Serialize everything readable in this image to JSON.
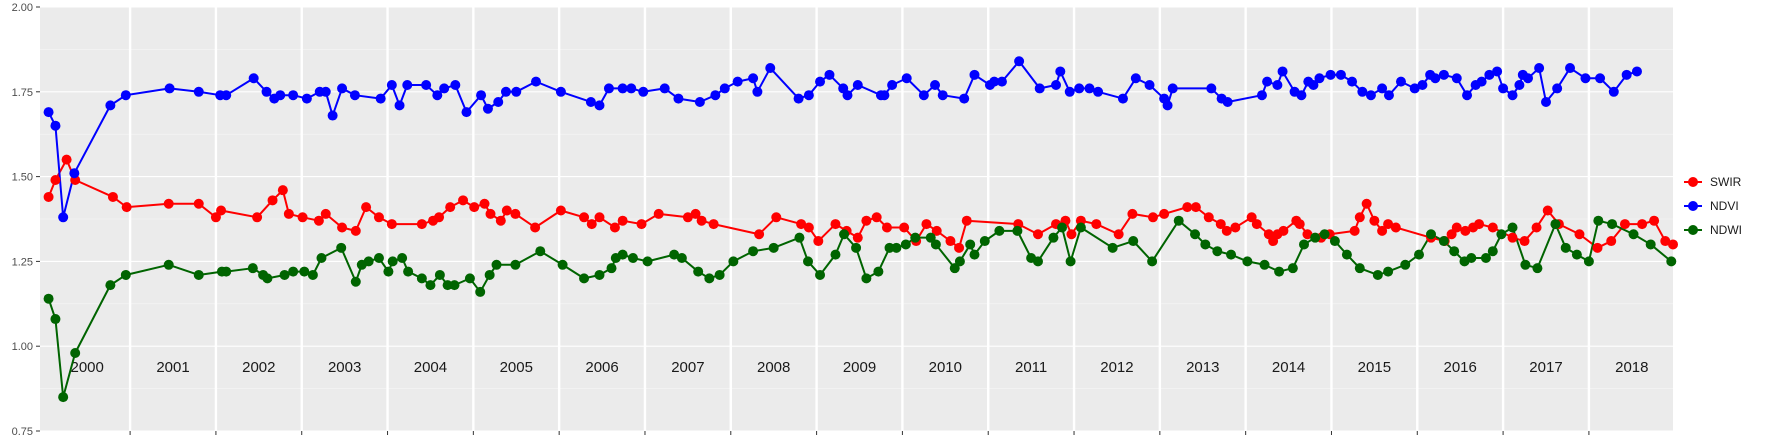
{
  "chart_data": {
    "type": "line",
    "title": "",
    "xlabel": "",
    "ylabel": "",
    "xlim": [
      1999.95,
      2018.98
    ],
    "ylim": [
      0.75,
      2.0
    ],
    "yticks": [
      "0.75",
      "1.00",
      "1.25",
      "1.50",
      "1.75",
      "2.00"
    ],
    "years": [
      "2000",
      "2001",
      "2002",
      "2003",
      "2004",
      "2005",
      "2006",
      "2007",
      "2008",
      "2009",
      "2010",
      "2011",
      "2012",
      "2013",
      "2014",
      "2015",
      "2016",
      "2017",
      "2018"
    ],
    "grid": true,
    "legend_position": "right",
    "series": [
      {
        "name": "SWIR",
        "color": "#ff0000",
        "x": [
          2000.05,
          2000.13,
          2000.26,
          2000.36,
          2000.8,
          2000.96,
          2001.45,
          2001.8,
          2002.0,
          2002.06,
          2002.48,
          2002.66,
          2002.78,
          2002.85,
          2003.01,
          2003.2,
          2003.28,
          2003.47,
          2003.63,
          2003.75,
          2003.9,
          2004.05,
          2004.4,
          2004.53,
          2004.6,
          2004.73,
          2004.88,
          2005.01,
          2005.13,
          2005.2,
          2005.32,
          2005.39,
          2005.49,
          2005.72,
          2006.02,
          2006.29,
          2006.38,
          2006.47,
          2006.65,
          2006.74,
          2006.96,
          2007.16,
          2007.5,
          2007.59,
          2007.66,
          2007.8,
          2008.33,
          2008.53,
          2008.82,
          2008.91,
          2009.02,
          2009.22,
          2009.35,
          2009.48,
          2009.58,
          2009.7,
          2009.82,
          2010.02,
          2010.16,
          2010.28,
          2010.4,
          2010.56,
          2010.66,
          2010.75,
          2011.35,
          2011.58,
          2011.79,
          2011.9,
          2011.97,
          2012.08,
          2012.26,
          2012.52,
          2012.68,
          2012.92,
          2013.05,
          2013.32,
          2013.42,
          2013.57,
          2013.71,
          2013.78,
          2013.88,
          2014.07,
          2014.13,
          2014.27,
          2014.32,
          2014.37,
          2014.44,
          2014.59,
          2014.63,
          2014.72,
          2014.88,
          2014.98,
          2015.27,
          2015.33,
          2015.41,
          2015.5,
          2015.59,
          2015.66,
          2015.75,
          2016.16,
          2016.32,
          2016.4,
          2016.46,
          2016.56,
          2016.65,
          2016.72,
          2016.88,
          2017.11,
          2017.25,
          2017.39,
          2017.52,
          2017.65,
          2017.89,
          2018.1,
          2018.26,
          2018.42,
          2018.62,
          2018.76,
          2018.89,
          2018.98
        ],
        "y": [
          1.44,
          1.49,
          1.55,
          1.49,
          1.44,
          1.41,
          1.42,
          1.42,
          1.38,
          1.4,
          1.38,
          1.43,
          1.46,
          1.39,
          1.38,
          1.37,
          1.39,
          1.35,
          1.34,
          1.41,
          1.38,
          1.36,
          1.36,
          1.37,
          1.38,
          1.41,
          1.43,
          1.41,
          1.42,
          1.39,
          1.37,
          1.4,
          1.39,
          1.35,
          1.4,
          1.38,
          1.36,
          1.38,
          1.35,
          1.37,
          1.36,
          1.39,
          1.38,
          1.39,
          1.37,
          1.36,
          1.33,
          1.38,
          1.36,
          1.35,
          1.31,
          1.36,
          1.34,
          1.32,
          1.37,
          1.38,
          1.35,
          1.35,
          1.31,
          1.36,
          1.34,
          1.31,
          1.29,
          1.37,
          1.36,
          1.33,
          1.36,
          1.37,
          1.33,
          1.37,
          1.36,
          1.33,
          1.39,
          1.38,
          1.39,
          1.41,
          1.41,
          1.38,
          1.36,
          1.34,
          1.35,
          1.38,
          1.36,
          1.33,
          1.31,
          1.33,
          1.34,
          1.37,
          1.36,
          1.33,
          1.32,
          1.33,
          1.34,
          1.38,
          1.42,
          1.37,
          1.34,
          1.36,
          1.35,
          1.32,
          1.31,
          1.33,
          1.35,
          1.34,
          1.35,
          1.36,
          1.35,
          1.32,
          1.31,
          1.35,
          1.4,
          1.36,
          1.33,
          1.29,
          1.31,
          1.36,
          1.36,
          1.37,
          1.31,
          1.3
        ],
        "note_on_y": null
      },
      {
        "name": "NDVI",
        "color": "#0000ff",
        "x": [
          2000.05,
          2000.13,
          2000.22,
          2000.35,
          2000.77,
          2000.95,
          2001.46,
          2001.8,
          2002.05,
          2002.12,
          2002.44,
          2002.59,
          2002.68,
          2002.75,
          2002.9,
          2003.06,
          2003.21,
          2003.28,
          2003.36,
          2003.47,
          2003.62,
          2003.92,
          2004.05,
          2004.14,
          2004.23,
          2004.45,
          2004.58,
          2004.66,
          2004.79,
          2004.92,
          2005.09,
          2005.17,
          2005.29,
          2005.38,
          2005.5,
          2005.73,
          2006.02,
          2006.37,
          2006.47,
          2006.58,
          2006.74,
          2006.84,
          2006.98,
          2007.23,
          2007.39,
          2007.64,
          2007.82,
          2007.93,
          2008.08,
          2008.26,
          2008.31,
          2008.46,
          2008.79,
          2008.91,
          2009.04,
          2009.15,
          2009.31,
          2009.36,
          2009.48,
          2009.75,
          2009.79,
          2009.88,
          2010.05,
          2010.25,
          2010.38,
          2010.47,
          2010.72,
          2010.84,
          2011.02,
          2011.07,
          2011.16,
          2011.36,
          2011.6,
          2011.79,
          2011.84,
          2011.95,
          2012.06,
          2012.18,
          2012.28,
          2012.57,
          2012.72,
          2012.88,
          2013.05,
          2013.09,
          2013.15,
          2013.6,
          2013.72,
          2013.79,
          2014.19,
          2014.25,
          2014.37,
          2014.43,
          2014.57,
          2014.65,
          2014.73,
          2014.79,
          2014.86,
          2014.99,
          2015.11,
          2015.24,
          2015.36,
          2015.46,
          2015.59,
          2015.67,
          2015.81,
          2015.97,
          2016.06,
          2016.15,
          2016.21,
          2016.31,
          2016.46,
          2016.58,
          2016.68,
          2016.75,
          2016.84,
          2016.93,
          2017.0,
          2017.11,
          2017.19,
          2017.23,
          2017.29,
          2017.42,
          2017.5,
          2017.63,
          2017.78,
          2017.96,
          2018.13,
          2018.29,
          2018.44,
          2018.56
        ],
        "y": [
          1.69,
          1.65,
          1.38,
          1.51,
          1.71,
          1.74,
          1.76,
          1.75,
          1.74,
          1.74,
          1.79,
          1.75,
          1.73,
          1.74,
          1.74,
          1.73,
          1.75,
          1.75,
          1.68,
          1.76,
          1.74,
          1.73,
          1.77,
          1.71,
          1.77,
          1.77,
          1.74,
          1.76,
          1.77,
          1.69,
          1.74,
          1.7,
          1.72,
          1.75,
          1.75,
          1.78,
          1.75,
          1.72,
          1.71,
          1.76,
          1.76,
          1.76,
          1.75,
          1.76,
          1.73,
          1.72,
          1.74,
          1.76,
          1.78,
          1.79,
          1.75,
          1.82,
          1.73,
          1.74,
          1.78,
          1.8,
          1.76,
          1.74,
          1.77,
          1.74,
          1.74,
          1.77,
          1.79,
          1.74,
          1.77,
          1.74,
          1.73,
          1.8,
          1.77,
          1.78,
          1.78,
          1.84,
          1.76,
          1.77,
          1.81,
          1.75,
          1.76,
          1.76,
          1.75,
          1.73,
          1.79,
          1.77,
          1.73,
          1.71,
          1.76,
          1.76,
          1.73,
          1.72,
          1.74,
          1.78,
          1.77,
          1.81,
          1.75,
          1.74,
          1.78,
          1.77,
          1.79,
          1.8,
          1.8,
          1.78,
          1.75,
          1.74,
          1.76,
          1.74,
          1.78,
          1.76,
          1.77,
          1.8,
          1.79,
          1.8,
          1.79,
          1.74,
          1.77,
          1.78,
          1.8,
          1.81,
          1.76,
          1.74,
          1.77,
          1.8,
          1.79,
          1.82,
          1.72,
          1.76,
          1.82,
          1.79,
          1.79,
          1.75,
          1.8,
          1.81
        ],
        "note_on_y": null
      },
      {
        "name": "NDWI",
        "color": "#006400",
        "x": [
          2000.05,
          2000.13,
          2000.22,
          2000.36,
          2000.77,
          2000.95,
          2001.45,
          2001.8,
          2002.07,
          2002.12,
          2002.43,
          2002.55,
          2002.6,
          2002.8,
          2002.9,
          2003.03,
          2003.13,
          2003.23,
          2003.46,
          2003.63,
          2003.7,
          2003.78,
          2003.9,
          2004.01,
          2004.06,
          2004.17,
          2004.24,
          2004.4,
          2004.5,
          2004.61,
          2004.7,
          2004.78,
          2004.96,
          2005.08,
          2005.19,
          2005.27,
          2005.49,
          2005.78,
          2006.04,
          2006.29,
          2006.47,
          2006.61,
          2006.66,
          2006.74,
          2006.86,
          2007.03,
          2007.34,
          2007.43,
          2007.62,
          2007.75,
          2007.87,
          2008.03,
          2008.26,
          2008.5,
          2008.8,
          2008.9,
          2009.04,
          2009.22,
          2009.32,
          2009.46,
          2009.58,
          2009.72,
          2009.85,
          2009.93,
          2010.04,
          2010.15,
          2010.33,
          2010.39,
          2010.61,
          2010.67,
          2010.79,
          2010.84,
          2010.96,
          2011.13,
          2011.34,
          2011.5,
          2011.58,
          2011.76,
          2011.86,
          2011.96,
          2012.08,
          2012.45,
          2012.69,
          2012.91,
          2013.22,
          2013.41,
          2013.53,
          2013.67,
          2013.83,
          2014.02,
          2014.22,
          2014.39,
          2014.55,
          2014.68,
          2014.81,
          2014.92,
          2015.04,
          2015.18,
          2015.33,
          2015.54,
          2015.66,
          2015.86,
          2016.02,
          2016.16,
          2016.31,
          2016.43,
          2016.55,
          2016.63,
          2016.8,
          2016.88,
          2016.98,
          2017.11,
          2017.26,
          2017.4,
          2017.61,
          2017.73,
          2017.86,
          2018.0,
          2018.11,
          2018.27,
          2018.52,
          2018.72,
          2018.96
        ],
        "y": [
          1.14,
          1.08,
          0.85,
          0.98,
          1.18,
          1.21,
          1.24,
          1.21,
          1.22,
          1.22,
          1.23,
          1.21,
          1.2,
          1.21,
          1.22,
          1.22,
          1.21,
          1.26,
          1.29,
          1.19,
          1.24,
          1.25,
          1.26,
          1.22,
          1.25,
          1.26,
          1.22,
          1.2,
          1.18,
          1.21,
          1.18,
          1.18,
          1.2,
          1.16,
          1.21,
          1.24,
          1.24,
          1.28,
          1.24,
          1.2,
          1.21,
          1.23,
          1.26,
          1.27,
          1.26,
          1.25,
          1.27,
          1.26,
          1.22,
          1.2,
          1.21,
          1.25,
          1.28,
          1.29,
          1.32,
          1.25,
          1.21,
          1.27,
          1.33,
          1.29,
          1.2,
          1.22,
          1.29,
          1.29,
          1.3,
          1.32,
          1.32,
          1.3,
          1.23,
          1.25,
          1.3,
          1.27,
          1.31,
          1.34,
          1.34,
          1.26,
          1.25,
          1.32,
          1.35,
          1.25,
          1.35,
          1.29,
          1.31,
          1.25,
          1.37,
          1.33,
          1.3,
          1.28,
          1.27,
          1.25,
          1.24,
          1.22,
          1.23,
          1.3,
          1.32,
          1.33,
          1.31,
          1.27,
          1.23,
          1.21,
          1.22,
          1.24,
          1.27,
          1.33,
          1.31,
          1.28,
          1.25,
          1.26,
          1.26,
          1.28,
          1.33,
          1.35,
          1.24,
          1.23,
          1.36,
          1.29,
          1.27,
          1.25,
          1.37,
          1.36,
          1.33,
          1.3,
          1.25
        ],
        "note_on_y": null
      }
    ]
  }
}
